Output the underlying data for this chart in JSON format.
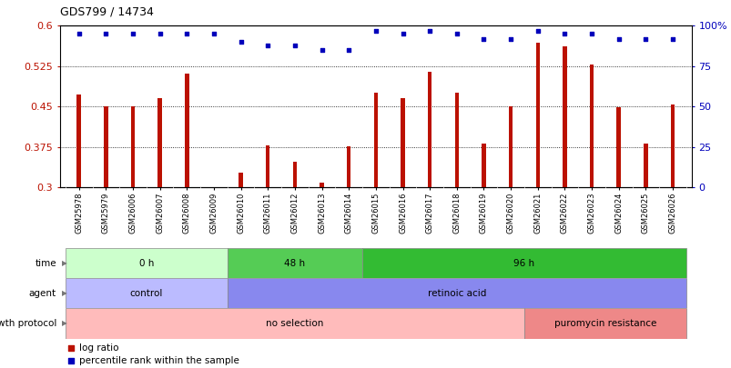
{
  "title": "GDS799 / 14734",
  "samples": [
    "GSM25978",
    "GSM25979",
    "GSM26006",
    "GSM26007",
    "GSM26008",
    "GSM26009",
    "GSM26010",
    "GSM26011",
    "GSM26012",
    "GSM26013",
    "GSM26014",
    "GSM26015",
    "GSM26016",
    "GSM26017",
    "GSM26018",
    "GSM26019",
    "GSM26020",
    "GSM26021",
    "GSM26022",
    "GSM26023",
    "GSM26024",
    "GSM26025",
    "GSM26026"
  ],
  "log_ratio": [
    0.472,
    0.45,
    0.45,
    0.465,
    0.512,
    0.3,
    0.328,
    0.378,
    0.348,
    0.308,
    0.376,
    0.475,
    0.465,
    0.515,
    0.475,
    0.382,
    0.45,
    0.568,
    0.562,
    0.528,
    0.448,
    0.382,
    0.453
  ],
  "percentile_rank": [
    95,
    95,
    95,
    95,
    95,
    95,
    90,
    88,
    88,
    85,
    85,
    97,
    95,
    97,
    95,
    92,
    92,
    97,
    95,
    95,
    92,
    92,
    92
  ],
  "bar_color": "#bb1100",
  "dot_color": "#0000bb",
  "ylim_left": [
    0.3,
    0.6
  ],
  "ylim_right": [
    0,
    100
  ],
  "yticks_left": [
    0.3,
    0.375,
    0.45,
    0.525,
    0.6
  ],
  "yticks_right": [
    0,
    25,
    50,
    75,
    100
  ],
  "hlines": [
    0.375,
    0.45,
    0.525
  ],
  "time_groups": [
    {
      "label": "0 h",
      "start": 0,
      "end": 6,
      "color": "#ccffcc"
    },
    {
      "label": "48 h",
      "start": 6,
      "end": 11,
      "color": "#55cc55"
    },
    {
      "label": "96 h",
      "start": 11,
      "end": 23,
      "color": "#33bb33"
    }
  ],
  "agent_groups": [
    {
      "label": "control",
      "start": 0,
      "end": 6,
      "color": "#bbbbff"
    },
    {
      "label": "retinoic acid",
      "start": 6,
      "end": 23,
      "color": "#8888ee"
    }
  ],
  "growth_groups": [
    {
      "label": "no selection",
      "start": 0,
      "end": 17,
      "color": "#ffbbbb"
    },
    {
      "label": "puromycin resistance",
      "start": 17,
      "end": 23,
      "color": "#ee8888"
    }
  ]
}
